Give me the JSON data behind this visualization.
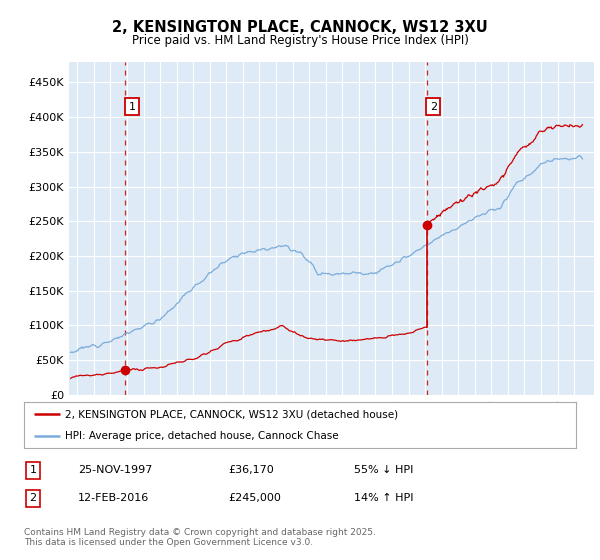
{
  "title": "2, KENSINGTON PLACE, CANNOCK, WS12 3XU",
  "subtitle": "Price paid vs. HM Land Registry's House Price Index (HPI)",
  "legend_line1": "2, KENSINGTON PLACE, CANNOCK, WS12 3XU (detached house)",
  "legend_line2": "HPI: Average price, detached house, Cannock Chase",
  "annotation1_date": "25-NOV-1997",
  "annotation1_price": 36170,
  "annotation1_hpi": "55% ↓ HPI",
  "annotation2_date": "12-FEB-2016",
  "annotation2_price": 245000,
  "annotation2_hpi": "14% ↑ HPI",
  "footnote": "Contains HM Land Registry data © Crown copyright and database right 2025.\nThis data is licensed under the Open Government Licence v3.0.",
  "red_color": "#cc0000",
  "blue_color": "#7aacdc",
  "fig_bg_color": "#ffffff",
  "plot_bg_color": "#deeaf5",
  "grid_color": "#ffffff",
  "vline_color": "#cc0000",
  "box_color": "#cc0000",
  "ylim": [
    0,
    480000
  ],
  "xlim_start": 1994.5,
  "xlim_end": 2026.2,
  "yticks": [
    0,
    50000,
    100000,
    150000,
    200000,
    250000,
    300000,
    350000,
    400000,
    450000
  ],
  "ytick_labels": [
    "£0",
    "£50K",
    "£100K",
    "£150K",
    "£200K",
    "£250K",
    "£300K",
    "£350K",
    "£400K",
    "£450K"
  ],
  "sale1_year": 1997.9,
  "sale1_price": 36170,
  "sale2_year": 2016.1,
  "sale2_price": 245000
}
